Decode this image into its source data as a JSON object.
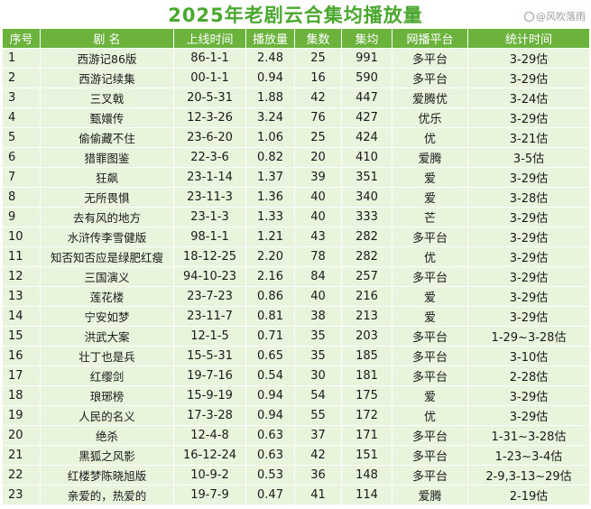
{
  "title": "2025年老剧云合集均播放量",
  "watermark": "@风吹落雨",
  "columns": [
    "序号",
    "剧  名",
    "上线时间",
    "播放量",
    "集数",
    "集均",
    "网播平台",
    "统计时间"
  ],
  "rows": [
    {
      "rank": "1",
      "name": "西游记86版",
      "date": "86-1-1",
      "plays": "2.48",
      "episodes": "25",
      "avg": "991",
      "platform": "多平台",
      "stat": "3-29估"
    },
    {
      "rank": "2",
      "name": "西游记续集",
      "date": "00-1-1",
      "plays": "0.94",
      "episodes": "16",
      "avg": "590",
      "platform": "多平台",
      "stat": "3-29估"
    },
    {
      "rank": "3",
      "name": "三叉戟",
      "date": "20-5-31",
      "plays": "1.88",
      "episodes": "42",
      "avg": "447",
      "platform": "爱腾优",
      "stat": "3-24估"
    },
    {
      "rank": "4",
      "name": "甄嬛传",
      "date": "12-3-26",
      "plays": "3.24",
      "episodes": "76",
      "avg": "427",
      "platform": "优乐",
      "stat": "3-29估"
    },
    {
      "rank": "5",
      "name": "偷偷藏不住",
      "date": "23-6-20",
      "plays": "1.06",
      "episodes": "25",
      "avg": "424",
      "platform": "优",
      "stat": "3-21估"
    },
    {
      "rank": "6",
      "name": "猎罪图鉴",
      "date": "22-3-6",
      "plays": "0.82",
      "episodes": "20",
      "avg": "410",
      "platform": "爱腾",
      "stat": "3-5估"
    },
    {
      "rank": "7",
      "name": "狂飙",
      "date": "23-1-14",
      "plays": "1.37",
      "episodes": "39",
      "avg": "351",
      "platform": "爱",
      "stat": "3-29估"
    },
    {
      "rank": "8",
      "name": "无所畏惧",
      "date": "23-11-3",
      "plays": "1.36",
      "episodes": "40",
      "avg": "340",
      "platform": "爱",
      "stat": "3-28估"
    },
    {
      "rank": "9",
      "name": "去有风的地方",
      "date": "23-1-3",
      "plays": "1.33",
      "episodes": "40",
      "avg": "333",
      "platform": "芒",
      "stat": "3-29估"
    },
    {
      "rank": "10",
      "name": "水浒传李雪健版",
      "date": "98-1-1",
      "plays": "1.21",
      "episodes": "43",
      "avg": "282",
      "platform": "多平台",
      "stat": "3-29估"
    },
    {
      "rank": "11",
      "name": "知否知否应是绿肥红瘦",
      "date": "18-12-25",
      "plays": "2.20",
      "episodes": "78",
      "avg": "282",
      "platform": "优",
      "stat": "3-29估"
    },
    {
      "rank": "12",
      "name": "三国演义",
      "date": "94-10-23",
      "plays": "2.16",
      "episodes": "84",
      "avg": "257",
      "platform": "多平台",
      "stat": "3-29估"
    },
    {
      "rank": "13",
      "name": "莲花楼",
      "date": "23-7-23",
      "plays": "0.86",
      "episodes": "40",
      "avg": "216",
      "platform": "爱",
      "stat": "3-29估"
    },
    {
      "rank": "14",
      "name": "宁安如梦",
      "date": "23-11-7",
      "plays": "0.81",
      "episodes": "38",
      "avg": "213",
      "platform": "爱",
      "stat": "3-29估"
    },
    {
      "rank": "15",
      "name": "洪武大案",
      "date": "12-1-5",
      "plays": "0.71",
      "episodes": "35",
      "avg": "203",
      "platform": "多平台",
      "stat": "1-29~3-28估"
    },
    {
      "rank": "16",
      "name": "壮丁也是兵",
      "date": "15-5-31",
      "plays": "0.65",
      "episodes": "35",
      "avg": "185",
      "platform": "多平台",
      "stat": "3-10估"
    },
    {
      "rank": "17",
      "name": "红缨剑",
      "date": "19-7-16",
      "plays": "0.54",
      "episodes": "30",
      "avg": "181",
      "platform": "多平台",
      "stat": "2-28估"
    },
    {
      "rank": "18",
      "name": "琅琊榜",
      "date": "15-9-19",
      "plays": "0.94",
      "episodes": "54",
      "avg": "175",
      "platform": "爱",
      "stat": "3-29估"
    },
    {
      "rank": "19",
      "name": "人民的名义",
      "date": "17-3-28",
      "plays": "0.94",
      "episodes": "55",
      "avg": "172",
      "platform": "优",
      "stat": "3-29估"
    },
    {
      "rank": "20",
      "name": "绝杀",
      "date": "12-4-8",
      "plays": "0.63",
      "episodes": "37",
      "avg": "171",
      "platform": "多平台",
      "stat": "1-31~3-28估"
    },
    {
      "rank": "21",
      "name": "黑狐之风影",
      "date": "16-12-24",
      "plays": "0.63",
      "episodes": "42",
      "avg": "151",
      "platform": "多平台",
      "stat": "1-23~3-4估"
    },
    {
      "rank": "22",
      "name": "红楼梦陈晓旭版",
      "date": "10-9-2",
      "plays": "0.53",
      "episodes": "36",
      "avg": "148",
      "platform": "多平台",
      "stat": "2-9,3-13~29估"
    },
    {
      "rank": "23",
      "name": "亲爱的，热爱的",
      "date": "19-7-9",
      "plays": "0.47",
      "episodes": "41",
      "avg": "114",
      "platform": "爱腾",
      "stat": "2-19估"
    }
  ]
}
